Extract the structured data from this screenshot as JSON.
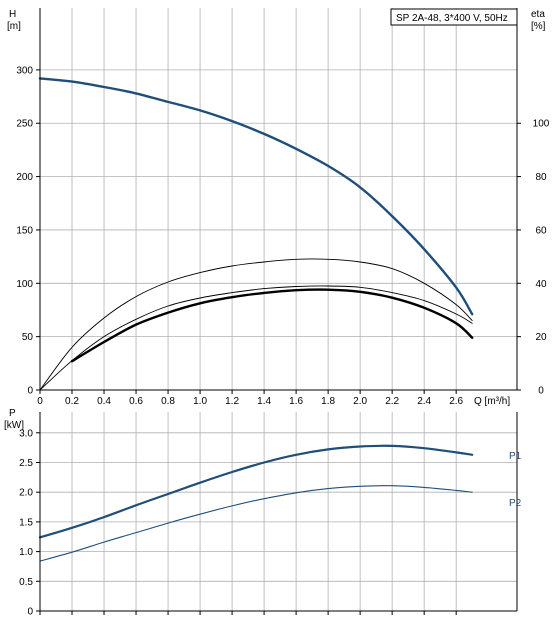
{
  "info_box": "SP 2A-48, 3*400 V, 50Hz",
  "colors": {
    "head": "#1f4e79",
    "power": "#1f4e79",
    "eta": "#000000",
    "grid": "#b0b0b0",
    "axis": "#000000"
  },
  "chart_data": [
    {
      "type": "line",
      "xlabel": "Q [m³/h]",
      "ylabel": "H",
      "ylabel_unit": "[m]",
      "y2label": "eta",
      "y2label_unit": "[%]",
      "xlim": [
        0,
        2.98
      ],
      "ylim": [
        0,
        358
      ],
      "y2lim": [
        0,
        143.2
      ],
      "xticks": [
        0,
        0.2,
        0.4,
        0.6,
        0.8,
        1.0,
        1.2,
        1.4,
        1.6,
        1.8,
        2.0,
        2.2,
        2.4,
        2.6
      ],
      "xtick_labels": [
        "0",
        "0.2",
        "0.4",
        "0.6",
        "0.8",
        "1.0",
        "1.2",
        "1.4",
        "1.6",
        "1.8",
        "2.0",
        "2.2",
        "2.4",
        "2.6"
      ],
      "yticks": [
        0,
        50,
        100,
        150,
        200,
        250,
        300
      ],
      "ytick_labels": [
        "0",
        "50",
        "100",
        "150",
        "200",
        "250",
        "300"
      ],
      "y2ticks": [
        0,
        20,
        40,
        60,
        80,
        100
      ],
      "y2tick_labels": [
        "0",
        "20",
        "40",
        "60",
        "80",
        "100"
      ],
      "grid": true,
      "series": [
        {
          "axis": "y",
          "style": "head",
          "x": [
            0,
            0.2,
            0.4,
            0.6,
            0.8,
            1.0,
            1.2,
            1.4,
            1.6,
            1.8,
            2.0,
            2.2,
            2.4,
            2.6,
            2.7
          ],
          "y": [
            292,
            289,
            284,
            278,
            270,
            262,
            252,
            240,
            226,
            210,
            190,
            163,
            132,
            96,
            71
          ]
        },
        {
          "axis": "y2",
          "style": "eta-thin",
          "x": [
            0,
            0.2,
            0.4,
            0.6,
            0.8,
            1.0,
            1.2,
            1.4,
            1.6,
            1.8,
            2.0,
            2.2,
            2.4,
            2.6,
            2.7
          ],
          "y": [
            0,
            16,
            27,
            35,
            40.5,
            44,
            46.5,
            48,
            49,
            49,
            48,
            45.5,
            40,
            32,
            26
          ]
        },
        {
          "axis": "y2",
          "style": "eta-thin",
          "x": [
            0,
            0.2,
            0.4,
            0.6,
            0.8,
            1.0,
            1.2,
            1.4,
            1.6,
            1.8,
            2.0,
            2.2,
            2.4,
            2.6,
            2.7
          ],
          "y": [
            0,
            11,
            20,
            26.5,
            31.5,
            34.5,
            36.5,
            38,
            38.8,
            39,
            38.5,
            36.5,
            33.5,
            28.5,
            25
          ]
        },
        {
          "axis": "y2",
          "style": "eta-bold",
          "x": [
            0.2,
            0.4,
            0.6,
            0.8,
            1.0,
            1.2,
            1.4,
            1.6,
            1.8,
            2.0,
            2.2,
            2.4,
            2.6,
            2.7
          ],
          "y": [
            10.8,
            18,
            24.5,
            29,
            32.5,
            34.8,
            36.4,
            37.4,
            37.6,
            36.8,
            34.6,
            30.8,
            25,
            19.6
          ]
        }
      ]
    },
    {
      "type": "line",
      "xlabel": "",
      "ylabel": "P",
      "ylabel_unit": "[kW]",
      "xlim": [
        0,
        2.98
      ],
      "ylim": [
        0,
        3.35
      ],
      "xticks": [
        0,
        0.2,
        0.4,
        0.6,
        0.8,
        1.0,
        1.2,
        1.4,
        1.6,
        1.8,
        2.0,
        2.2,
        2.4,
        2.6
      ],
      "yticks": [
        0,
        0.5,
        1.0,
        1.5,
        2.0,
        2.5,
        3.0
      ],
      "ytick_labels": [
        "0",
        "0.5",
        "1.0",
        "1.5",
        "2.0",
        "2.5",
        "3.0"
      ],
      "grid": true,
      "series": [
        {
          "name": "P1",
          "style": "power-bold",
          "x": [
            0,
            0.2,
            0.4,
            0.6,
            0.8,
            1.0,
            1.2,
            1.4,
            1.6,
            1.8,
            2.0,
            2.2,
            2.4,
            2.6,
            2.7
          ],
          "y": [
            1.24,
            1.4,
            1.58,
            1.78,
            1.97,
            2.16,
            2.34,
            2.5,
            2.63,
            2.72,
            2.77,
            2.78,
            2.74,
            2.67,
            2.63
          ]
        },
        {
          "name": "P2",
          "style": "power-thin",
          "x": [
            0,
            0.2,
            0.4,
            0.6,
            0.8,
            1.0,
            1.2,
            1.4,
            1.6,
            1.8,
            2.0,
            2.2,
            2.4,
            2.6,
            2.7
          ],
          "y": [
            0.84,
            0.99,
            1.16,
            1.32,
            1.48,
            1.63,
            1.77,
            1.89,
            1.99,
            2.06,
            2.1,
            2.11,
            2.08,
            2.03,
            2.0
          ]
        }
      ]
    }
  ]
}
